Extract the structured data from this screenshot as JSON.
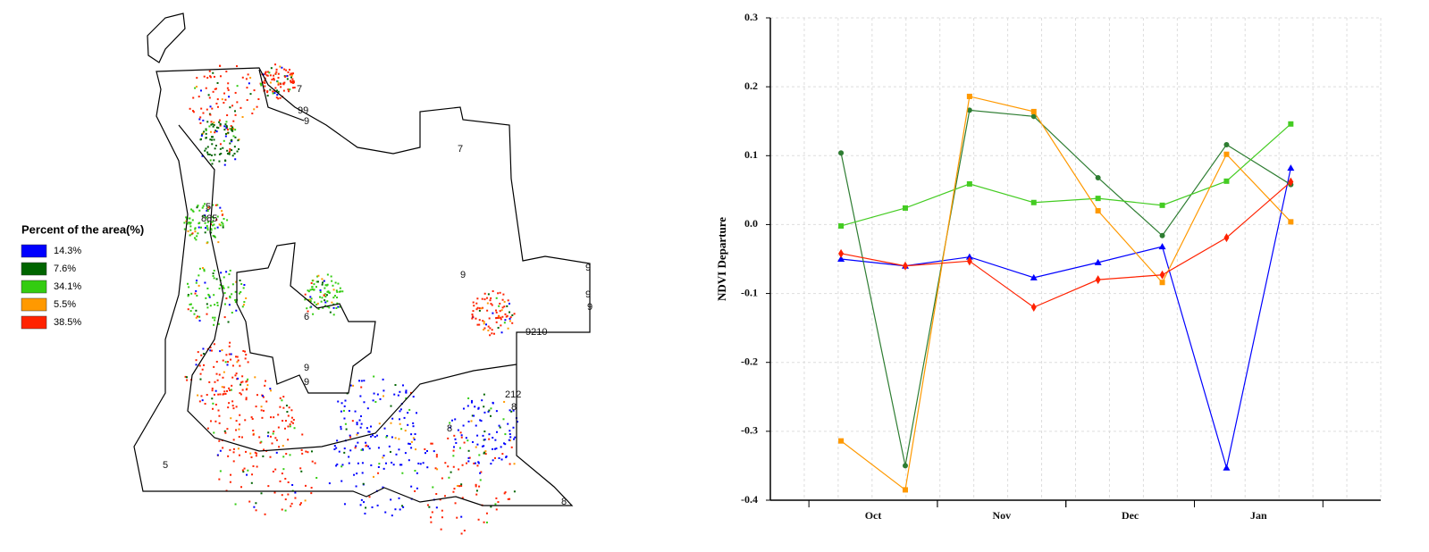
{
  "map": {
    "legend_title": "Percent of the area(%)",
    "legend": [
      {
        "label": "14.3%",
        "color": "#0000ff"
      },
      {
        "label": "7.6%",
        "color": "#006400"
      },
      {
        "label": "34.1%",
        "color": "#33cc11"
      },
      {
        "label": "5.5%",
        "color": "#ff9900"
      },
      {
        "label": "38.5%",
        "color": "#ff2200"
      }
    ],
    "labels": [
      "7",
      "99",
      "9",
      "7",
      "5",
      "885",
      "9",
      "6",
      "9",
      "9",
      "9",
      "9210",
      "9",
      "9",
      "212",
      "8",
      "8",
      "5",
      "8"
    ]
  },
  "chart_data": {
    "type": "line",
    "ylabel": "NDVI Departure",
    "x": [
      0.25,
      0.75,
      1.25,
      1.75,
      2.25,
      2.75,
      3.25,
      3.75
    ],
    "xlim": [
      -0.3,
      4.45
    ],
    "xticks": [
      {
        "value": 0.5,
        "label": "Oct"
      },
      {
        "value": 1.5,
        "label": "Nov"
      },
      {
        "value": 2.5,
        "label": "Dec"
      },
      {
        "value": 3.5,
        "label": "Jan"
      }
    ],
    "ylim": [
      -0.4,
      0.3
    ],
    "yticks": [
      -0.4,
      -0.3,
      -0.2,
      -0.1,
      {
        "value": 0,
        "label": "0.0"
      },
      0.1,
      0.2,
      0.3
    ],
    "grid": true,
    "series": [
      {
        "color": "#0000ff",
        "marker": "triangle",
        "values": [
          -0.05,
          -0.06,
          -0.047,
          -0.077,
          -0.055,
          -0.032,
          -0.353,
          0.082
        ]
      },
      {
        "color": "#2e7d32",
        "marker": "circle",
        "values": [
          0.104,
          -0.35,
          0.166,
          0.157,
          0.068,
          -0.016,
          0.116,
          0.058
        ]
      },
      {
        "color": "#44cc22",
        "marker": "square",
        "values": [
          -0.002,
          0.024,
          0.059,
          0.032,
          0.038,
          0.028,
          0.063,
          0.146
        ]
      },
      {
        "color": "#ff9900",
        "marker": "square",
        "values": [
          -0.314,
          -0.385,
          0.186,
          0.164,
          0.02,
          -0.084,
          0.102,
          0.004
        ]
      },
      {
        "color": "#ff2200",
        "marker": "diamond",
        "values": [
          -0.042,
          -0.06,
          -0.053,
          -0.12,
          -0.08,
          -0.073,
          -0.019,
          0.062
        ]
      }
    ]
  }
}
